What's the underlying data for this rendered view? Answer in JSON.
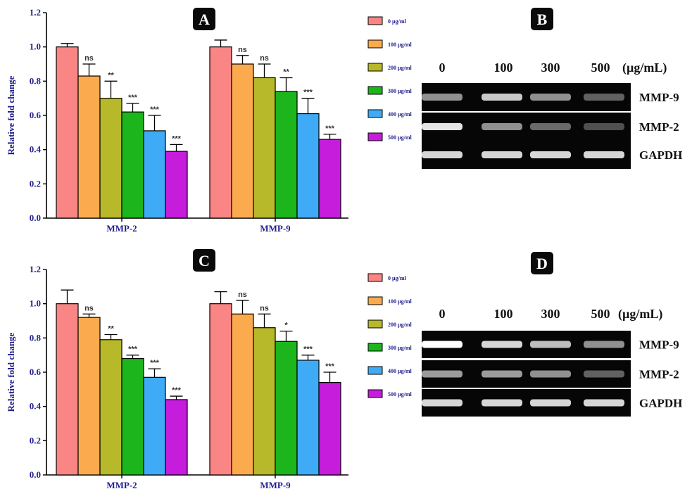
{
  "legend": [
    "0 µg/ml",
    "100 µg/ml",
    "200 µg/ml",
    "300 µg/ml",
    "400 µg/ml",
    "500 µg/ml"
  ],
  "colors": [
    "#f98585",
    "#fbab4e",
    "#b7b82a",
    "#1cb51c",
    "#3faaf5",
    "#c61cdc"
  ],
  "chart_data": [
    {
      "panel": "A",
      "type": "bar",
      "ylabel": "Relative fold change",
      "ylim": [
        0.0,
        1.2
      ],
      "yticks": [
        "0.0",
        "0.2",
        "0.4",
        "0.6",
        "0.8",
        "1.0",
        "1.2"
      ],
      "categories": [
        "MMP-2",
        "MMP-9"
      ],
      "series": [
        {
          "name": "0 µg/ml",
          "values": [
            1.0,
            1.0
          ],
          "errors": [
            0.02,
            0.04
          ],
          "sig": [
            "",
            ""
          ]
        },
        {
          "name": "100 µg/ml",
          "values": [
            0.83,
            0.9
          ],
          "errors": [
            0.07,
            0.05
          ],
          "sig": [
            "ns",
            "ns"
          ]
        },
        {
          "name": "200 µg/ml",
          "values": [
            0.7,
            0.82
          ],
          "errors": [
            0.1,
            0.08
          ],
          "sig": [
            "**",
            "ns"
          ]
        },
        {
          "name": "300 µg/ml",
          "values": [
            0.62,
            0.74
          ],
          "errors": [
            0.05,
            0.08
          ],
          "sig": [
            "***",
            "**"
          ]
        },
        {
          "name": "400 µg/ml",
          "values": [
            0.51,
            0.61
          ],
          "errors": [
            0.09,
            0.09
          ],
          "sig": [
            "***",
            "***"
          ]
        },
        {
          "name": "500 µg/ml",
          "values": [
            0.39,
            0.46
          ],
          "errors": [
            0.04,
            0.03
          ],
          "sig": [
            "***",
            "***"
          ]
        }
      ]
    },
    {
      "panel": "C",
      "type": "bar",
      "ylabel": "Relative fold change",
      "ylim": [
        0.0,
        1.2
      ],
      "yticks": [
        "0.0",
        "0.2",
        "0.4",
        "0.6",
        "0.8",
        "1.0",
        "1.2"
      ],
      "categories": [
        "MMP-2",
        "MMP-9"
      ],
      "series": [
        {
          "name": "0 µg/ml",
          "values": [
            1.0,
            1.0
          ],
          "errors": [
            0.08,
            0.07
          ],
          "sig": [
            "",
            ""
          ]
        },
        {
          "name": "100 µg/ml",
          "values": [
            0.92,
            0.94
          ],
          "errors": [
            0.02,
            0.08
          ],
          "sig": [
            "ns",
            "ns"
          ]
        },
        {
          "name": "200 µg/ml",
          "values": [
            0.79,
            0.86
          ],
          "errors": [
            0.03,
            0.08
          ],
          "sig": [
            "**",
            "ns"
          ]
        },
        {
          "name": "300 µg/ml",
          "values": [
            0.68,
            0.78
          ],
          "errors": [
            0.02,
            0.06
          ],
          "sig": [
            "***",
            "*"
          ]
        },
        {
          "name": "400 µg/ml",
          "values": [
            0.57,
            0.67
          ],
          "errors": [
            0.05,
            0.03
          ],
          "sig": [
            "***",
            "***"
          ]
        },
        {
          "name": "500 µg/ml",
          "values": [
            0.44,
            0.54
          ],
          "errors": [
            0.02,
            0.06
          ],
          "sig": [
            "***",
            "***"
          ]
        }
      ]
    }
  ],
  "gels": [
    {
      "panel": "B",
      "lanes": [
        "0",
        "100",
        "300",
        "500"
      ],
      "unit": "(µg/mL)",
      "rows": [
        {
          "label": "MMP-9",
          "intensity": [
            0.55,
            0.8,
            0.55,
            0.3
          ]
        },
        {
          "label": "MMP-2",
          "intensity": [
            0.9,
            0.55,
            0.35,
            0.2
          ]
        },
        {
          "label": "GAPDH",
          "intensity": [
            0.85,
            0.85,
            0.85,
            0.85
          ]
        }
      ]
    },
    {
      "panel": "D",
      "lanes": [
        "0",
        "100",
        "300",
        "500"
      ],
      "unit": "(µg/mL)",
      "rows": [
        {
          "label": "MMP-9",
          "intensity": [
            1.0,
            0.85,
            0.75,
            0.55
          ]
        },
        {
          "label": "MMP-2",
          "intensity": [
            0.6,
            0.6,
            0.55,
            0.3
          ]
        },
        {
          "label": "GAPDH",
          "intensity": [
            0.85,
            0.85,
            0.85,
            0.85
          ]
        }
      ]
    }
  ]
}
